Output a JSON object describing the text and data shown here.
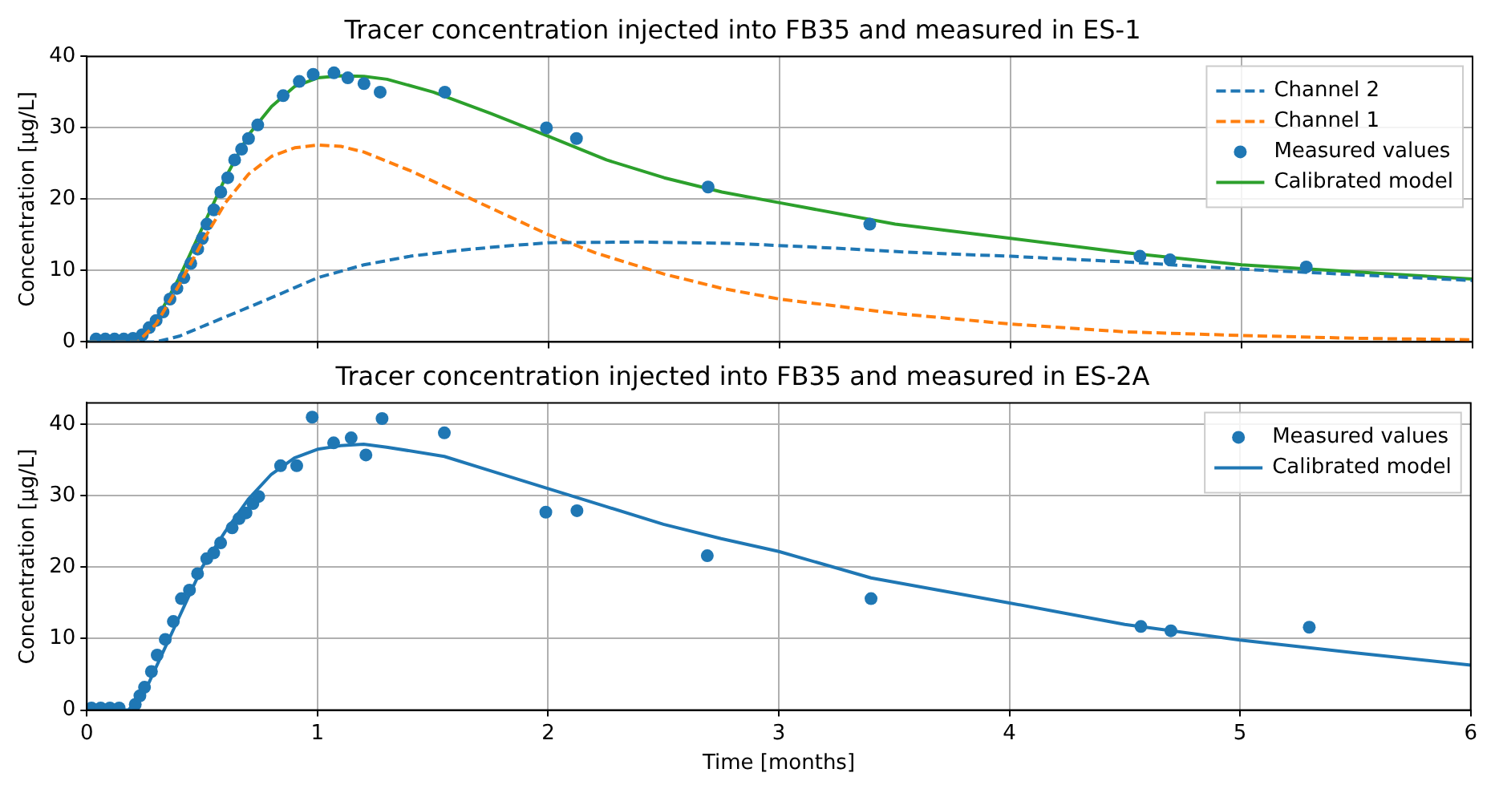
{
  "chart_data": [
    {
      "type": "line",
      "title": "Tracer concentration injected into FB35 and measured in ES-1",
      "ylabel": "Concentration [µg/L]",
      "xlim": [
        0,
        6
      ],
      "xticks": [
        0,
        1,
        2,
        3,
        4,
        5,
        6
      ],
      "ylim": [
        0,
        40
      ],
      "yticks": [
        0,
        10,
        20,
        30,
        40
      ],
      "grid": true,
      "legend": "top right",
      "tick_labels": "y",
      "series": [
        {
          "name": "Channel 2",
          "type": "line",
          "line_style": "dashed",
          "marker": "none",
          "color": "#1f77b4",
          "x": [
            0,
            0.3,
            0.4,
            0.6,
            0.8,
            1.0,
            1.2,
            1.4,
            1.6,
            1.8,
            2.0,
            2.4,
            2.8,
            3.2,
            3.6,
            4.0,
            4.5,
            5.0,
            5.5,
            6.0
          ],
          "values": [
            0,
            0,
            0.8,
            3.5,
            6.2,
            9,
            10.8,
            12,
            12.8,
            13.4,
            13.9,
            14,
            13.8,
            13.2,
            12.5,
            12,
            11.2,
            10.2,
            9.4,
            8.6
          ]
        },
        {
          "name": "Channel 1",
          "type": "line",
          "line_style": "dashed",
          "marker": "none",
          "color": "#ff7f0e",
          "x": [
            0,
            0.22,
            0.3,
            0.4,
            0.5,
            0.6,
            0.7,
            0.8,
            0.9,
            1.0,
            1.1,
            1.2,
            1.4,
            1.6,
            1.8,
            2.0,
            2.2,
            2.5,
            2.75,
            3.0,
            3.5,
            4.0,
            4.5,
            5.0,
            5.5,
            6.0
          ],
          "values": [
            0,
            0,
            2.5,
            8,
            14,
            19.5,
            23.5,
            26,
            27.2,
            27.6,
            27.4,
            26.6,
            24,
            21,
            18,
            15,
            12.5,
            9.5,
            7.5,
            6,
            4,
            2.5,
            1.4,
            0.9,
            0.5,
            0.3
          ]
        },
        {
          "name": "Measured values",
          "type": "scatter",
          "marker": "circle",
          "color": "#1f77b4",
          "x": [
            0.04,
            0.08,
            0.12,
            0.16,
            0.2,
            0.24,
            0.27,
            0.3,
            0.33,
            0.36,
            0.39,
            0.42,
            0.45,
            0.48,
            0.5,
            0.52,
            0.55,
            0.58,
            0.61,
            0.64,
            0.67,
            0.7,
            0.74,
            0.85,
            0.92,
            0.98,
            1.07,
            1.13,
            1.2,
            1.27,
            1.55,
            1.99,
            2.12,
            2.69,
            3.39,
            4.56,
            4.69,
            5.28
          ],
          "values": [
            0.4,
            0.4,
            0.4,
            0.4,
            0.5,
            1,
            2,
            3,
            4.2,
            6,
            7.5,
            9,
            11,
            13,
            14.5,
            16.5,
            18.5,
            21,
            23,
            25.5,
            27,
            28.5,
            30.4,
            34.5,
            36.5,
            37.5,
            37.7,
            37,
            36.2,
            35,
            35,
            30,
            28.5,
            21.7,
            16.5,
            12,
            11.5,
            10.5
          ]
        },
        {
          "name": "Calibrated model",
          "type": "line",
          "line_style": "solid",
          "marker": "none",
          "color": "#2ca02c",
          "x": [
            0,
            0.2,
            0.3,
            0.4,
            0.5,
            0.6,
            0.7,
            0.8,
            0.9,
            1.0,
            1.1,
            1.2,
            1.3,
            1.5,
            1.75,
            2.0,
            2.25,
            2.5,
            2.75,
            3.0,
            3.5,
            4.0,
            4.5,
            5.0,
            5.5,
            6.0
          ],
          "values": [
            0,
            0,
            3,
            9,
            16,
            23,
            29,
            33,
            35.8,
            37,
            37.3,
            37.2,
            36.8,
            35,
            32,
            28.8,
            25.5,
            23,
            21,
            19.5,
            16.5,
            14.5,
            12.5,
            10.8,
            9.8,
            8.8
          ]
        }
      ]
    },
    {
      "type": "line",
      "title": "Tracer concentration injected into FB35 and measured in ES-2A",
      "xlabel": "Time [months]",
      "ylabel": "Concentration [µg/L]",
      "xlim": [
        0,
        6
      ],
      "xticks": [
        0,
        1,
        2,
        3,
        4,
        5,
        6
      ],
      "ylim": [
        0,
        43
      ],
      "yticks": [
        0,
        10,
        20,
        30,
        40
      ],
      "grid": true,
      "legend": "top right",
      "series": [
        {
          "name": "Measured values",
          "type": "scatter",
          "marker": "circle",
          "color": "#1f77b4",
          "x": [
            0.02,
            0.06,
            0.1,
            0.14,
            0.21,
            0.23,
            0.25,
            0.28,
            0.305,
            0.34,
            0.375,
            0.41,
            0.445,
            0.48,
            0.52,
            0.55,
            0.58,
            0.63,
            0.66,
            0.69,
            0.72,
            0.745,
            0.84,
            0.91,
            0.977,
            1.07,
            1.146,
            1.21,
            1.28,
            1.55,
            1.99,
            2.125,
            2.69,
            3.4,
            4.57,
            4.7,
            5.3
          ],
          "values": [
            0.3,
            0.3,
            0.3,
            0.3,
            0.8,
            2,
            3.2,
            5.4,
            7.7,
            9.9,
            12.4,
            15.6,
            16.8,
            19.1,
            21.2,
            22,
            23.4,
            25.5,
            26.8,
            27.6,
            28.9,
            29.9,
            34.2,
            34.2,
            41,
            37.4,
            38.1,
            35.7,
            40.8,
            38.8,
            27.7,
            27.9,
            21.6,
            15.6,
            11.7,
            11.1,
            11.6
          ]
        },
        {
          "name": "Calibrated model",
          "type": "line",
          "line_style": "solid",
          "marker": "none",
          "color": "#1f77b4",
          "x": [
            0,
            0.18,
            0.25,
            0.3,
            0.4,
            0.5,
            0.6,
            0.7,
            0.8,
            0.9,
            1.0,
            1.1,
            1.2,
            1.3,
            1.55,
            1.75,
            2.0,
            2.25,
            2.5,
            2.75,
            3.0,
            3.4,
            4.0,
            4.5,
            5.0,
            5.5,
            6.0
          ],
          "values": [
            0,
            0,
            2.5,
            6,
            13,
            20,
            25,
            29.5,
            33,
            35.3,
            36.5,
            37,
            37.2,
            36.8,
            35.5,
            33.5,
            31,
            28.5,
            26,
            24,
            22.2,
            18.5,
            15,
            12,
            9.8,
            8,
            6.3
          ]
        }
      ]
    }
  ]
}
